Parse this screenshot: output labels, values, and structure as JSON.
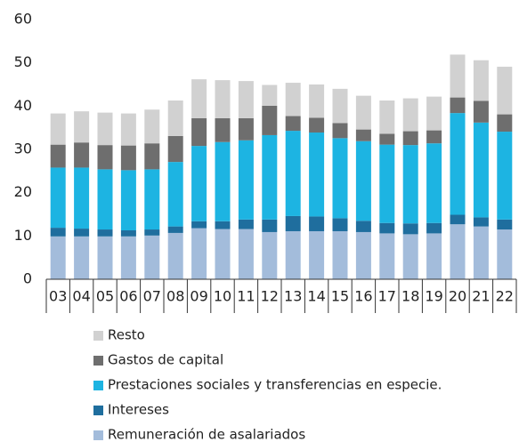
{
  "chart_data": {
    "type": "stacked_bar",
    "categories": [
      "03",
      "04",
      "05",
      "06",
      "07",
      "08",
      "09",
      "10",
      "11",
      "12",
      "13",
      "14",
      "15",
      "16",
      "17",
      "18",
      "19",
      "20",
      "21",
      "22"
    ],
    "series": [
      {
        "name": "Remuneración de asalariados",
        "color": "#a3bcdb",
        "values": [
          9.9,
          9.9,
          9.9,
          9.9,
          10.1,
          10.7,
          11.8,
          11.6,
          11.6,
          10.9,
          11.1,
          11.1,
          11.1,
          10.9,
          10.6,
          10.4,
          10.6,
          12.7,
          12.2,
          11.5
        ]
      },
      {
        "name": "Intereses",
        "color": "#1f6e9e",
        "values": [
          2.0,
          1.8,
          1.6,
          1.4,
          1.4,
          1.5,
          1.6,
          1.8,
          2.2,
          2.9,
          3.5,
          3.4,
          3.0,
          2.6,
          2.4,
          2.5,
          2.4,
          2.2,
          2.1,
          2.3
        ]
      },
      {
        "name": "Prestaciones sociales y transferencias en especie.",
        "color": "#1db4e2",
        "values": [
          13.9,
          14.1,
          13.9,
          13.9,
          13.9,
          14.9,
          17.4,
          18.3,
          18.3,
          19.5,
          19.7,
          19.4,
          18.5,
          18.4,
          18.1,
          18.1,
          18.4,
          23.5,
          21.9,
          20.3
        ]
      },
      {
        "name": "Gastos de capital",
        "color": "#6e6e6e",
        "values": [
          5.3,
          5.8,
          5.6,
          5.7,
          6.0,
          6.0,
          6.4,
          5.5,
          5.1,
          6.8,
          3.4,
          3.4,
          3.5,
          2.7,
          2.5,
          3.2,
          3.0,
          3.6,
          5.0,
          4.0
        ]
      },
      {
        "name": "Resto",
        "color": "#d1d1d1",
        "values": [
          7.2,
          7.2,
          7.5,
          7.4,
          7.8,
          8.2,
          9.0,
          8.8,
          8.6,
          4.8,
          7.7,
          7.7,
          7.9,
          7.8,
          7.7,
          7.6,
          7.8,
          9.9,
          9.4,
          11.0
        ]
      }
    ],
    "ylim": [
      0,
      60
    ],
    "yticks": [
      0,
      10,
      20,
      30,
      40,
      50,
      60
    ]
  }
}
